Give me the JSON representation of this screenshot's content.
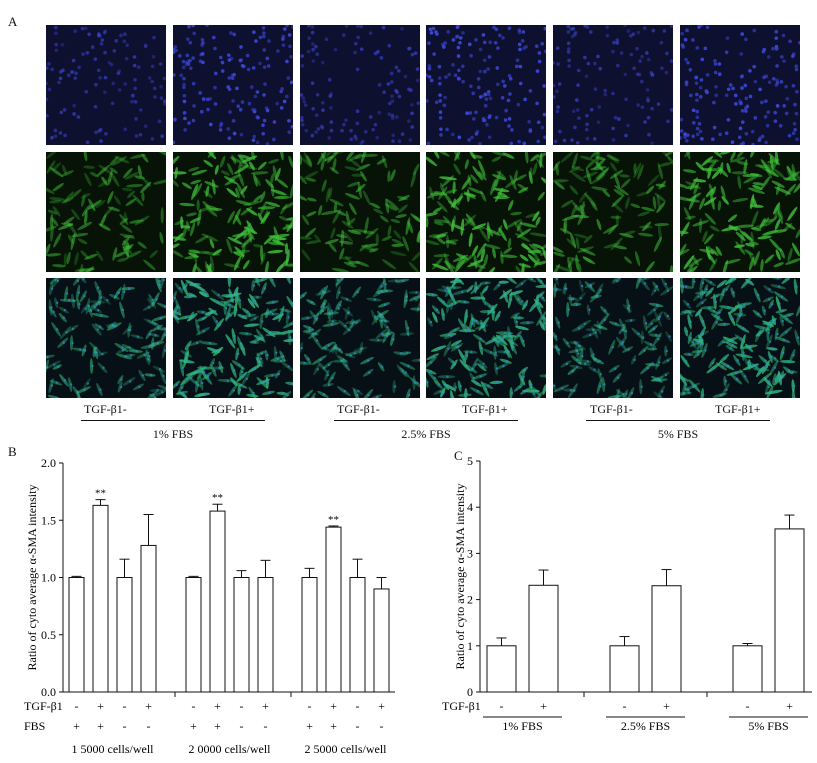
{
  "figure": {
    "panel_labels": [
      "A",
      "B",
      "C"
    ],
    "microscopy": {
      "rows": [
        {
          "stain": "blue",
          "bg": "#0e1030",
          "dot": "#3b46d6"
        },
        {
          "stain": "green",
          "bg": "#061306",
          "dot": "#3fbf3a"
        },
        {
          "stain": "merge",
          "bg": "#061016",
          "dot": "#2fb87a"
        }
      ],
      "treatment_labels": [
        "TGF-β1-",
        "TGF-β1+",
        "TGF-β1-",
        "TGF-β1+",
        "TGF-β1-",
        "TGF-β1+"
      ],
      "group_labels": [
        "1% FBS",
        "2.5% FBS",
        "5% FBS"
      ]
    }
  },
  "chart_data": [
    {
      "type": "bar",
      "panel": "B",
      "ylabel": "Ratio of cyto average α-SMA intensity",
      "ylim": [
        0,
        2.0
      ],
      "yticks": [
        "0.0",
        "0.5",
        "1.0",
        "1.5",
        "2.0"
      ],
      "row_labels": [
        "TGF-β1",
        "FBS"
      ],
      "groups": [
        {
          "label": "1 5000 cells/well",
          "tgf": [
            "-",
            "+",
            "-",
            "+"
          ],
          "fbs": [
            "+",
            "+",
            "-",
            "-"
          ],
          "values": [
            1.0,
            1.63,
            1.0,
            1.28
          ],
          "errors": [
            0.01,
            0.05,
            0.16,
            0.27
          ],
          "sig": [
            "",
            "**",
            "",
            ""
          ]
        },
        {
          "label": "2 0000 cells/well",
          "tgf": [
            "-",
            "+",
            "-",
            "+"
          ],
          "fbs": [
            "+",
            "+",
            "-",
            "-"
          ],
          "values": [
            1.0,
            1.58,
            1.0,
            1.0
          ],
          "errors": [
            0.01,
            0.06,
            0.06,
            0.15
          ],
          "sig": [
            "",
            "**",
            "",
            ""
          ]
        },
        {
          "label": "2 5000 cells/well",
          "tgf": [
            "-",
            "+",
            "-",
            "+"
          ],
          "fbs": [
            "+",
            "+",
            "-",
            "-"
          ],
          "values": [
            1.0,
            1.44,
            1.0,
            0.9
          ],
          "errors": [
            0.08,
            0.01,
            0.16,
            0.1
          ],
          "sig": [
            "",
            "**",
            "",
            ""
          ]
        }
      ]
    },
    {
      "type": "bar",
      "panel": "C",
      "ylabel": "Ratio of cyto average α-SMA intensity",
      "ylim": [
        0,
        5
      ],
      "yticks": [
        "0",
        "1",
        "2",
        "3",
        "4",
        "5"
      ],
      "row_labels": [
        "TGF-β1"
      ],
      "groups": [
        {
          "label": "1% FBS",
          "tgf": [
            "-",
            "+"
          ],
          "values": [
            1.0,
            2.31
          ],
          "errors": [
            0.17,
            0.33
          ]
        },
        {
          "label": "2.5% FBS",
          "tgf": [
            "-",
            "+"
          ],
          "values": [
            1.0,
            2.3
          ],
          "errors": [
            0.2,
            0.35
          ]
        },
        {
          "label": "5% FBS",
          "tgf": [
            "-",
            "+"
          ],
          "values": [
            1.0,
            3.53
          ],
          "errors": [
            0.05,
            0.3
          ]
        }
      ]
    }
  ]
}
